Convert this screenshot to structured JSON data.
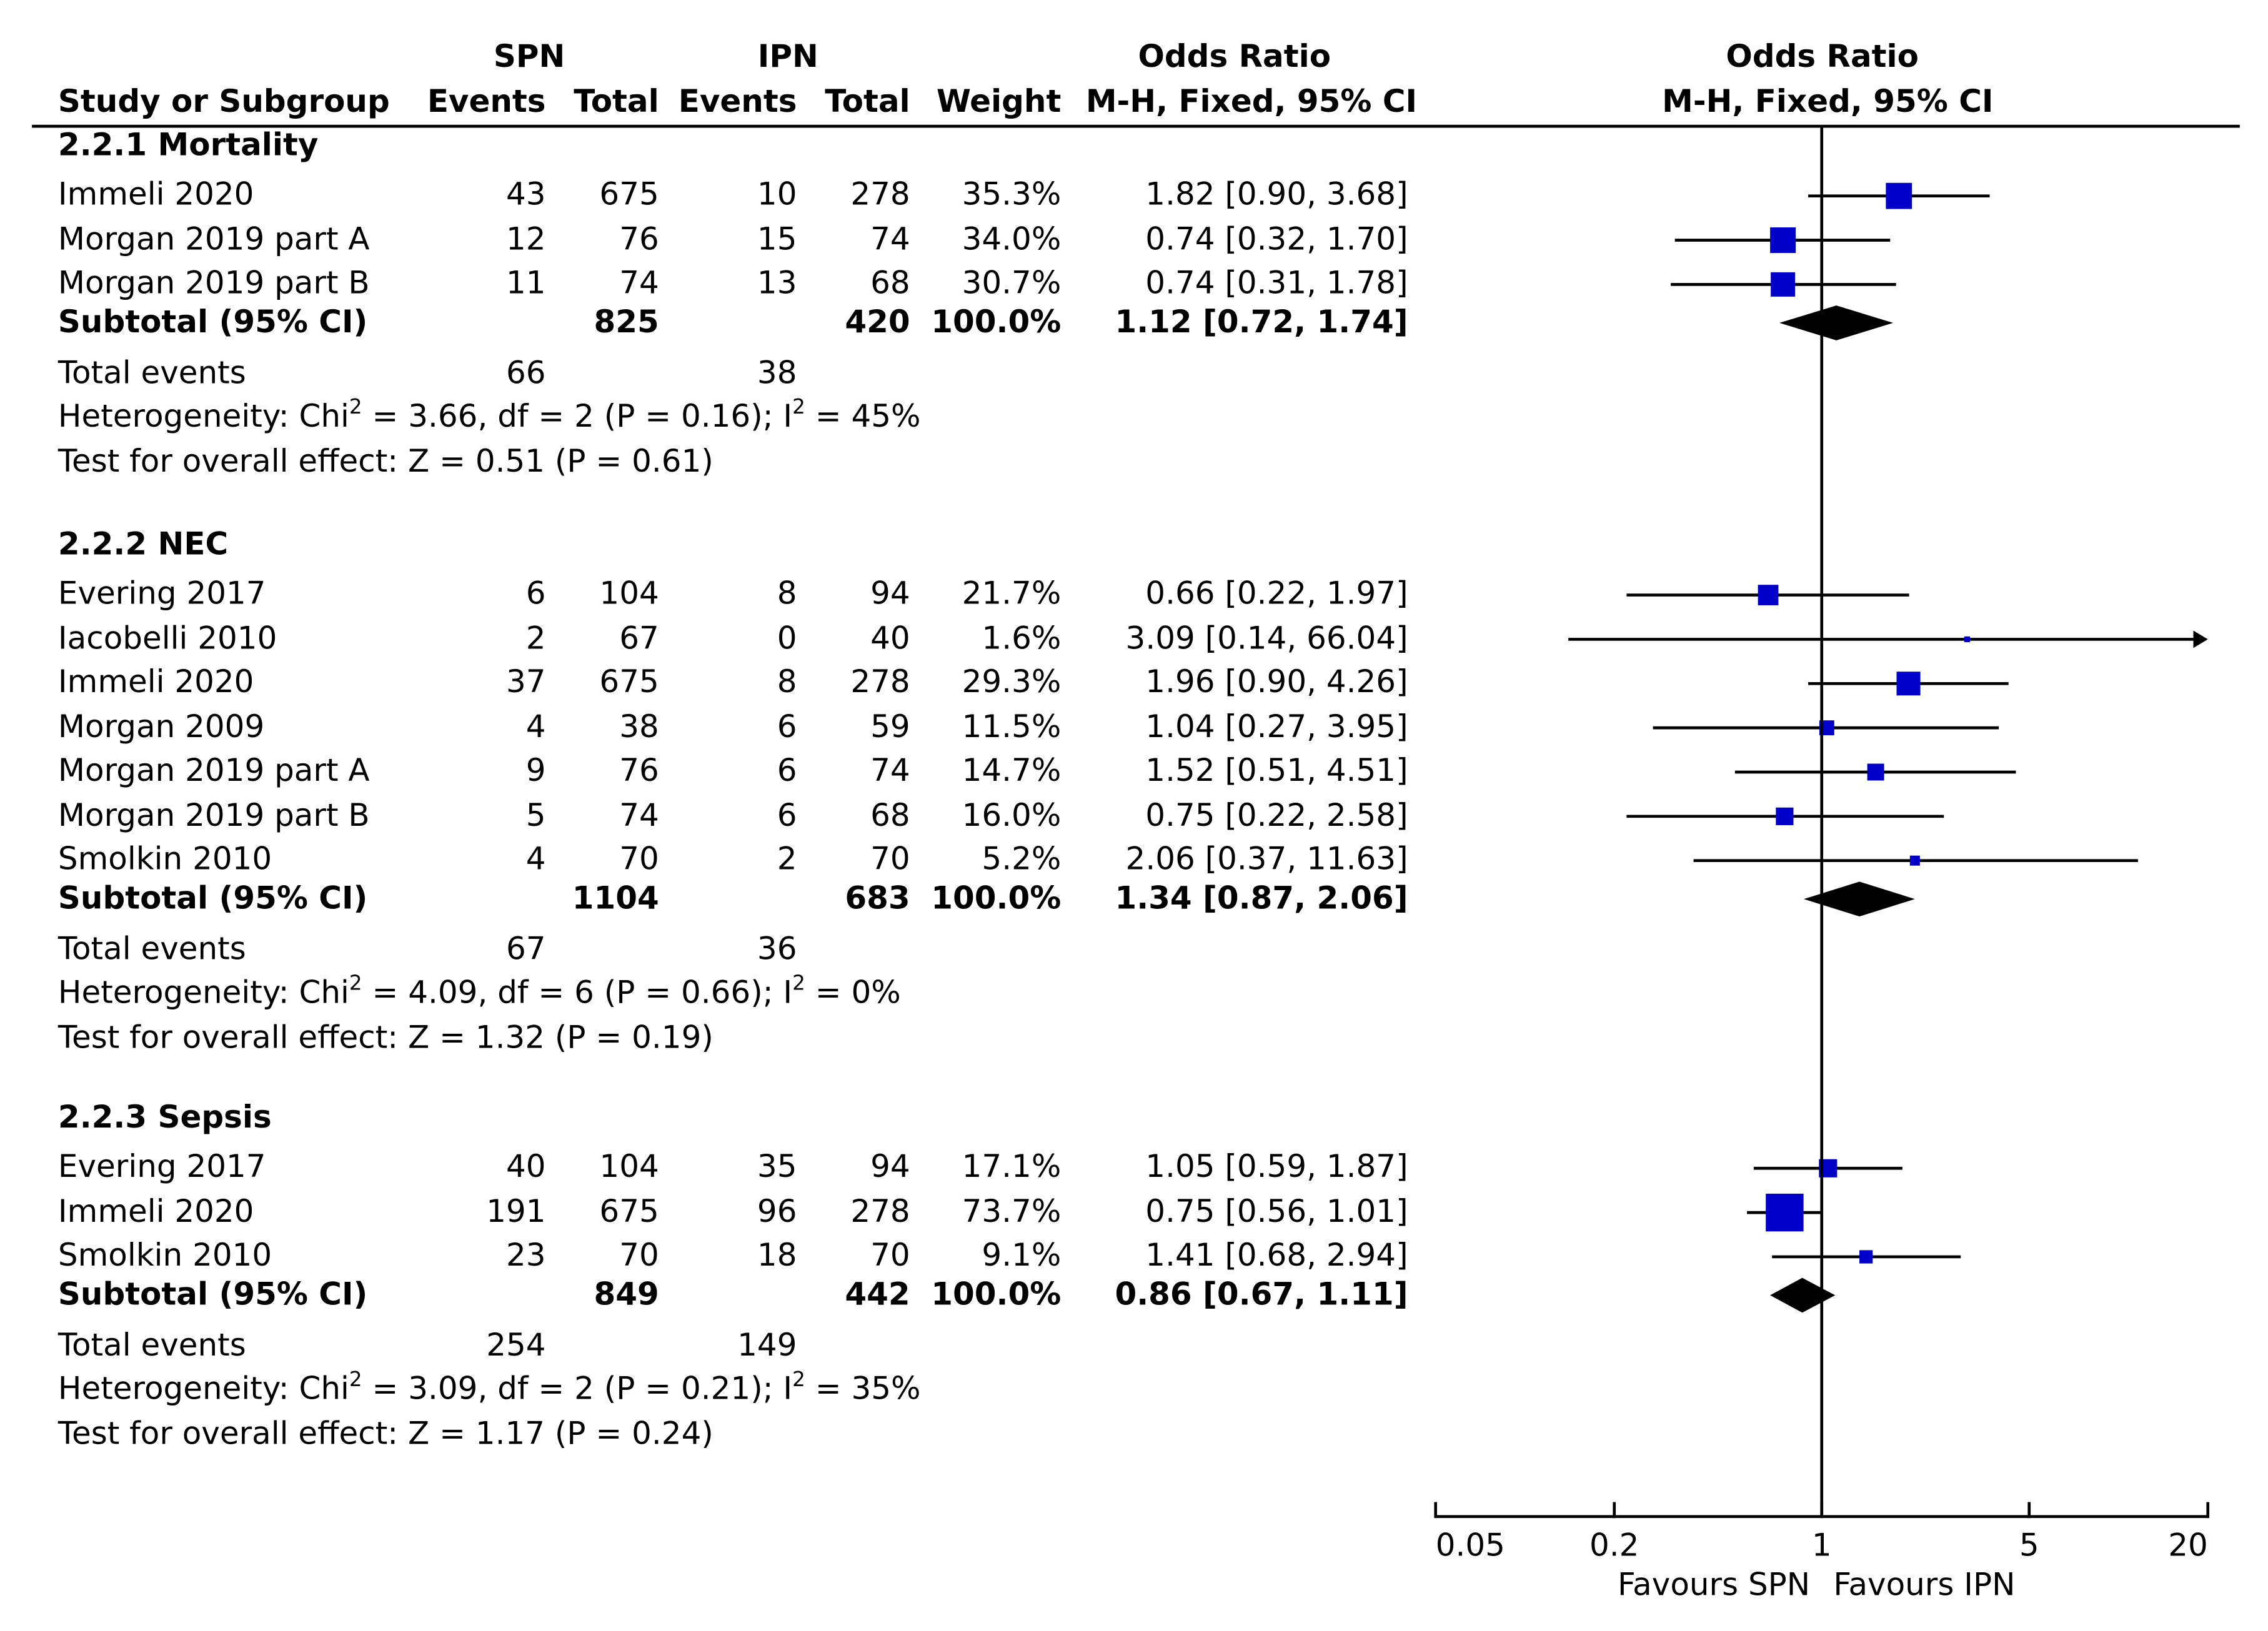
{
  "header": {
    "spn": "SPN",
    "ipn": "IPN",
    "odds_ratio": "Odds Ratio",
    "odds_ratio_plot": "Odds Ratio",
    "study_col": "Study or Subgroup",
    "events": "Events",
    "total": "Total",
    "weight": "Weight",
    "method": "M-H, Fixed, 95% CI",
    "method_plot": "M-H, Fixed, 95% CI"
  },
  "chart_data": {
    "type": "forest",
    "scale": "log",
    "x_ticks": [
      0.05,
      0.2,
      1,
      5,
      20
    ],
    "x_tick_labels": [
      "0.05",
      "0.2",
      "1",
      "5",
      "20"
    ],
    "xlim": [
      0.05,
      20
    ],
    "null_value": 1,
    "favours_left": "Favours SPN",
    "favours_right": "Favours IPN",
    "subgroups": [
      {
        "title": "2.2.1 Mortality",
        "studies": [
          {
            "name": "Immeli 2020",
            "spn_events": "43",
            "spn_total": "675",
            "ipn_events": "10",
            "ipn_total": "278",
            "weight": "35.3%",
            "ci_text": "1.82 [0.90, 3.68]",
            "or": 1.82,
            "lo": 0.9,
            "hi": 3.68,
            "w": 35.3
          },
          {
            "name": "Morgan 2019 part A",
            "spn_events": "12",
            "spn_total": "76",
            "ipn_events": "15",
            "ipn_total": "74",
            "weight": "34.0%",
            "ci_text": "0.74 [0.32, 1.70]",
            "or": 0.74,
            "lo": 0.32,
            "hi": 1.7,
            "w": 34.0
          },
          {
            "name": "Morgan 2019 part B",
            "spn_events": "11",
            "spn_total": "74",
            "ipn_events": "13",
            "ipn_total": "68",
            "weight": "30.7%",
            "ci_text": "0.74 [0.31, 1.78]",
            "or": 0.74,
            "lo": 0.31,
            "hi": 1.78,
            "w": 30.7
          }
        ],
        "subtotal": {
          "label": "Subtotal (95% CI)",
          "spn_total": "825",
          "ipn_total": "420",
          "weight": "100.0%",
          "ci_text": "1.12 [0.72, 1.74]",
          "or": 1.12,
          "lo": 0.72,
          "hi": 1.74
        },
        "total_events": {
          "label": "Total events",
          "spn": "66",
          "ipn": "38"
        },
        "heterogeneity": {
          "prefix": "Heterogeneity: Chi",
          "mid": " = 3.66, df = 2 (P = 0.16); I",
          "suffix": " = 45%"
        },
        "overall": "Test for overall effect: Z = 0.51 (P = 0.61)"
      },
      {
        "title": "2.2.2 NEC",
        "studies": [
          {
            "name": "Evering 2017",
            "spn_events": "6",
            "spn_total": "104",
            "ipn_events": "8",
            "ipn_total": "94",
            "weight": "21.7%",
            "ci_text": "0.66 [0.22, 1.97]",
            "or": 0.66,
            "lo": 0.22,
            "hi": 1.97,
            "w": 21.7
          },
          {
            "name": "Iacobelli 2010",
            "spn_events": "2",
            "spn_total": "67",
            "ipn_events": "0",
            "ipn_total": "40",
            "weight": "1.6%",
            "ci_text": "3.09 [0.14, 66.04]",
            "or": 3.09,
            "lo": 0.14,
            "hi": 66.04,
            "w": 1.6
          },
          {
            "name": "Immeli 2020",
            "spn_events": "37",
            "spn_total": "675",
            "ipn_events": "8",
            "ipn_total": "278",
            "weight": "29.3%",
            "ci_text": "1.96 [0.90, 4.26]",
            "or": 1.96,
            "lo": 0.9,
            "hi": 4.26,
            "w": 29.3
          },
          {
            "name": "Morgan 2009",
            "spn_events": "4",
            "spn_total": "38",
            "ipn_events": "6",
            "ipn_total": "59",
            "weight": "11.5%",
            "ci_text": "1.04 [0.27, 3.95]",
            "or": 1.04,
            "lo": 0.27,
            "hi": 3.95,
            "w": 11.5
          },
          {
            "name": "Morgan 2019 part A",
            "spn_events": "9",
            "spn_total": "76",
            "ipn_events": "6",
            "ipn_total": "74",
            "weight": "14.7%",
            "ci_text": "1.52 [0.51, 4.51]",
            "or": 1.52,
            "lo": 0.51,
            "hi": 4.51,
            "w": 14.7
          },
          {
            "name": "Morgan 2019 part B",
            "spn_events": "5",
            "spn_total": "74",
            "ipn_events": "6",
            "ipn_total": "68",
            "weight": "16.0%",
            "ci_text": "0.75 [0.22, 2.58]",
            "or": 0.75,
            "lo": 0.22,
            "hi": 2.58,
            "w": 16.0
          },
          {
            "name": "Smolkin 2010",
            "spn_events": "4",
            "spn_total": "70",
            "ipn_events": "2",
            "ipn_total": "70",
            "weight": "5.2%",
            "ci_text": "2.06 [0.37, 11.63]",
            "or": 2.06,
            "lo": 0.37,
            "hi": 11.63,
            "w": 5.2
          }
        ],
        "subtotal": {
          "label": "Subtotal (95% CI)",
          "spn_total": "1104",
          "ipn_total": "683",
          "weight": "100.0%",
          "ci_text": "1.34 [0.87, 2.06]",
          "or": 1.34,
          "lo": 0.87,
          "hi": 2.06
        },
        "total_events": {
          "label": "Total events",
          "spn": "67",
          "ipn": "36"
        },
        "heterogeneity": {
          "prefix": "Heterogeneity: Chi",
          "mid": " = 4.09, df = 6 (P = 0.66); I",
          "suffix": " = 0%"
        },
        "overall": "Test for overall effect: Z = 1.32 (P = 0.19)"
      },
      {
        "title": "2.2.3 Sepsis",
        "studies": [
          {
            "name": "Evering 2017",
            "spn_events": "40",
            "spn_total": "104",
            "ipn_events": "35",
            "ipn_total": "94",
            "weight": "17.1%",
            "ci_text": "1.05 [0.59, 1.87]",
            "or": 1.05,
            "lo": 0.59,
            "hi": 1.87,
            "w": 17.1
          },
          {
            "name": "Immeli 2020",
            "spn_events": "191",
            "spn_total": "675",
            "ipn_events": "96",
            "ipn_total": "278",
            "weight": "73.7%",
            "ci_text": "0.75 [0.56, 1.01]",
            "or": 0.75,
            "lo": 0.56,
            "hi": 1.01,
            "w": 73.7
          },
          {
            "name": "Smolkin 2010",
            "spn_events": "23",
            "spn_total": "70",
            "ipn_events": "18",
            "ipn_total": "70",
            "weight": "9.1%",
            "ci_text": "1.41 [0.68, 2.94]",
            "or": 1.41,
            "lo": 0.68,
            "hi": 2.94,
            "w": 9.1
          }
        ],
        "subtotal": {
          "label": "Subtotal (95% CI)",
          "spn_total": "849",
          "ipn_total": "442",
          "weight": "100.0%",
          "ci_text": "0.86 [0.67, 1.11]",
          "or": 0.86,
          "lo": 0.67,
          "hi": 1.11
        },
        "total_events": {
          "label": "Total events",
          "spn": "254",
          "ipn": "149"
        },
        "heterogeneity": {
          "prefix": "Heterogeneity: Chi",
          "mid": " = 3.09, df = 2 (P = 0.21); I",
          "suffix": " = 35%"
        },
        "overall": "Test for overall effect: Z = 1.17 (P = 0.24)"
      }
    ]
  },
  "colors": {
    "square": "#0000c8",
    "diamond": "#000000",
    "line": "#000000"
  },
  "superscript": "2"
}
